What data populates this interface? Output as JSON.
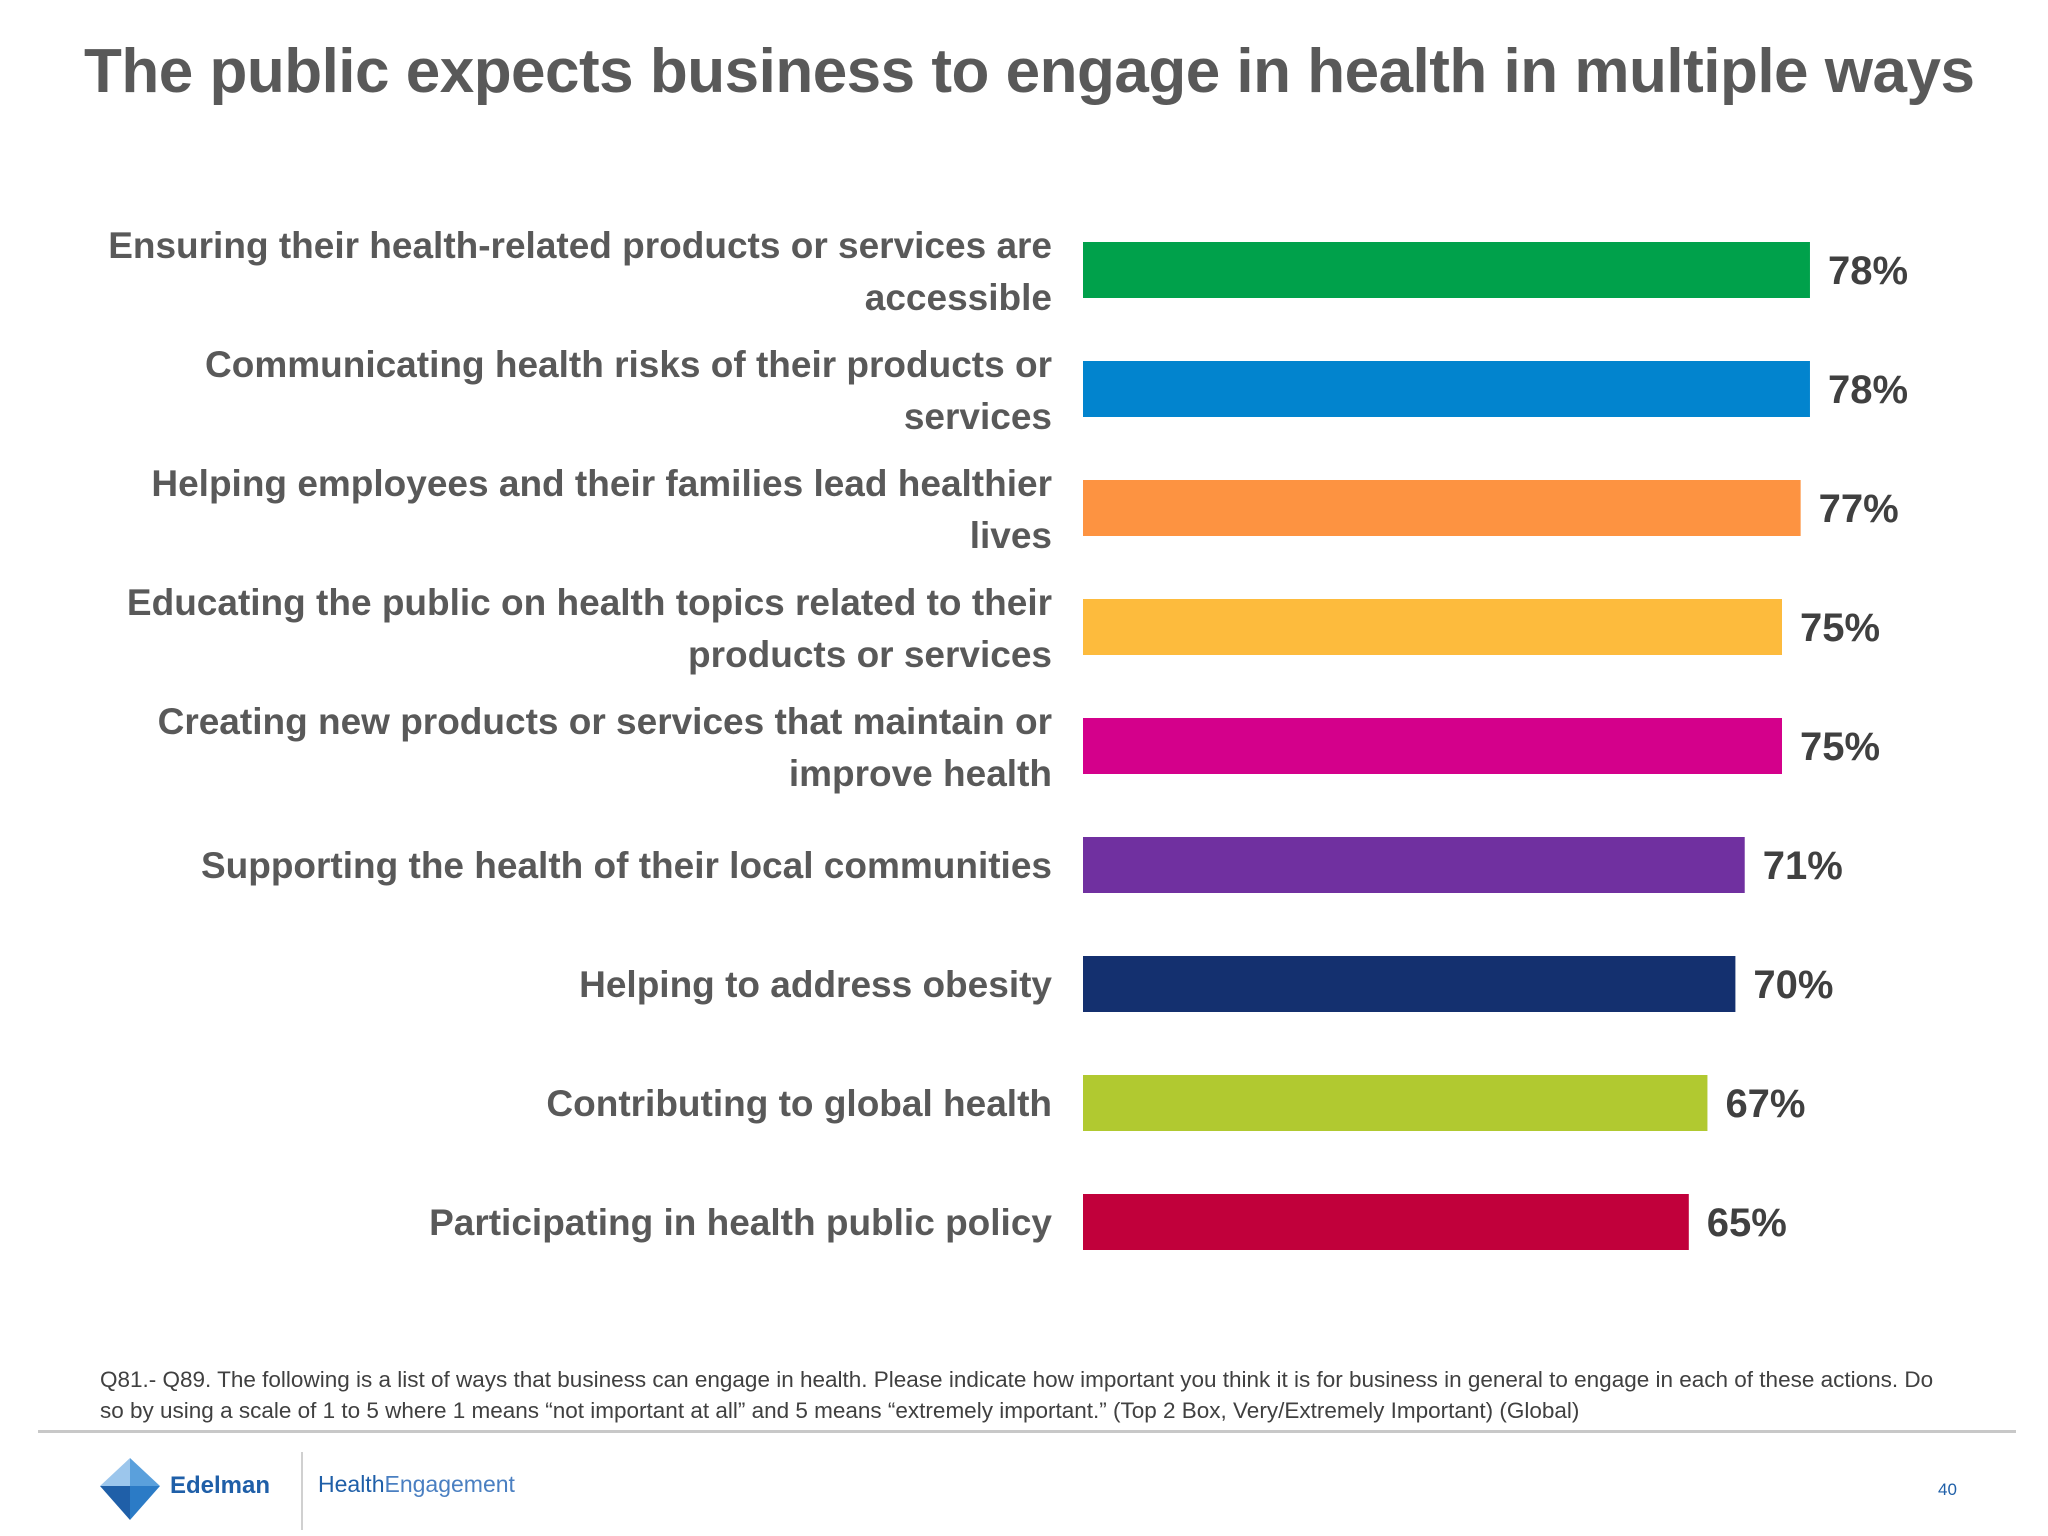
{
  "slide": {
    "title": "The public expects business to engage in health in multiple ways",
    "footnote": "Q81.- Q89. The following is a list of ways that business can engage in health. Please indicate how important you think it is for business in general to engage in each of these actions. Do so by using a scale of 1 to 5 where 1 means “not important at all” and 5 means “extremely important.” (Top 2 Box, Very/Extremely Important)  (Global)",
    "brand_name": "Edelman",
    "product_prefix": "Health",
    "product_suffix": "Engagement",
    "page_number": "40"
  },
  "chart_data": {
    "type": "bar",
    "orientation": "horizontal",
    "title": "",
    "xlabel": "",
    "ylabel": "",
    "xlim": [
      0,
      100
    ],
    "grid": false,
    "legend": "none",
    "value_suffix": "%",
    "categories": [
      [
        "Ensuring their health-related products or services are",
        "accessible"
      ],
      [
        "Communicating health risks of their products or",
        "services"
      ],
      [
        "Helping employees and their families lead healthier",
        "lives"
      ],
      [
        "Educating the public on health topics related to their",
        "products or services"
      ],
      [
        "Creating new products or services that maintain or",
        "improve health"
      ],
      [
        "Supporting the health of their local communities"
      ],
      [
        "Helping to address obesity"
      ],
      [
        "Contributing to global health"
      ],
      [
        "Participating in health public policy"
      ]
    ],
    "values": [
      78,
      78,
      77,
      75,
      75,
      71,
      70,
      67,
      65
    ],
    "value_labels": [
      "78%",
      "78%",
      "77%",
      "75%",
      "75%",
      "71%",
      "70%",
      "67%",
      "65%"
    ],
    "colors": [
      "#00a14b",
      "#0284ce",
      "#fd9341",
      "#fdbb3d",
      "#d4008b",
      "#7030a0",
      "#14306f",
      "#b1c930",
      "#c1003b"
    ]
  }
}
